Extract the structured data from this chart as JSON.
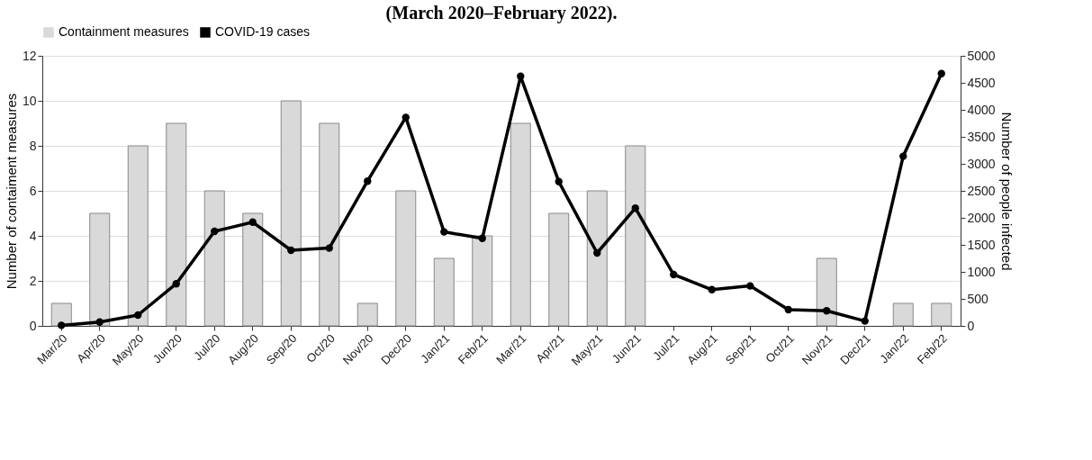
{
  "chart_data": {
    "type": "bar",
    "title": "(March 2020–February 2022).",
    "categories": [
      "Mar/20",
      "Apr/20",
      "May/20",
      "Jun/20",
      "Jul/20",
      "Aug/20",
      "Sep/20",
      "Oct/20",
      "Nov/20",
      "Dec/20",
      "Jan/21",
      "Feb/21",
      "Mar/21",
      "Apr/21",
      "May/21",
      "Jun/21",
      "Jul/21",
      "Aug/21",
      "Sep/21",
      "Oct/21",
      "Nov/21",
      "Dec/21",
      "Jan/22",
      "Feb/22"
    ],
    "ylabel": "Number of contaiment measures",
    "y2label": "Number of people infected",
    "ylim": [
      0,
      12
    ],
    "yticks": [
      0,
      2,
      4,
      6,
      8,
      10,
      12
    ],
    "y2lim": [
      0,
      5000
    ],
    "y2ticks": [
      0,
      500,
      1000,
      1500,
      2000,
      2500,
      3000,
      3500,
      4000,
      4500,
      5000
    ],
    "grid": "y",
    "legend": "top",
    "marker": "circle",
    "line_style": "solid",
    "series": [
      {
        "name": "Containment measures",
        "color": "#d9d9d9",
        "values": [
          1,
          5,
          8,
          9,
          6,
          5,
          10,
          9,
          1,
          6,
          3,
          4,
          9,
          5,
          6,
          8,
          0,
          0,
          0,
          0,
          3,
          0,
          1,
          1
        ]
      },
      {
        "name": "COVID-19 cases",
        "type": "line",
        "axis": "y2",
        "color": "#000000",
        "values": [
          10,
          70,
          200,
          780,
          1750,
          1920,
          1400,
          1440,
          2680,
          3860,
          1740,
          1620,
          4620,
          2670,
          1350,
          2180,
          950,
          670,
          740,
          300,
          280,
          90,
          3140,
          4670
        ]
      }
    ]
  }
}
